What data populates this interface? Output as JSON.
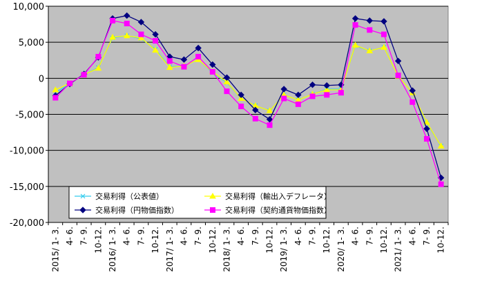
{
  "chart_data": {
    "type": "line",
    "title": "",
    "xlabel": "",
    "ylabel": "",
    "ylim": [
      -20000,
      10000
    ],
    "yticks": [
      10000,
      5000,
      0,
      -5000,
      -10000,
      -15000,
      -20000
    ],
    "ytick_labels": [
      "10,000",
      "5,000",
      "0",
      "-5,000",
      "-10,000",
      "-15,000",
      "-20,000"
    ],
    "grid": true,
    "legend_position": "lower-left inside plot",
    "categories": [
      "2015/ 1- 3.",
      "4- 6.",
      "7- 9.",
      "10-12.",
      "2016/ 1- 3.",
      "4- 6.",
      "7- 9.",
      "10-12.",
      "2017/ 1- 3.",
      "4- 6.",
      "7- 9.",
      "10-12.",
      "2018/ 1- 3.",
      "4- 6.",
      "7- 9.",
      "10-12.",
      "2019/ 1- 3.",
      "4- 6.",
      "7- 9.",
      "10-12.",
      "2020/ 1- 3.",
      "4- 6.",
      "7- 9.",
      "10-12.",
      "2021/ 1- 3.",
      "4- 6.",
      "7- 9.",
      "10-12."
    ],
    "series": [
      {
        "name": "交易利得（公表値）",
        "color": "#33ccee",
        "marker": "x",
        "values": [
          -2000,
          -700,
          500,
          1500,
          5600,
          5900,
          5500,
          4000,
          1600,
          1700,
          2600,
          800,
          -600,
          -2800,
          -3800,
          -4500,
          -2300,
          -3000,
          -2200,
          -1500,
          -1500,
          4500,
          3800,
          4300,
          300,
          -2000,
          -6200,
          -9400
        ]
      },
      {
        "name": "交易利得（輸出入デフレータ）",
        "color": "#ffff00",
        "marker": "triangle",
        "values": [
          -1600,
          -700,
          500,
          1400,
          5700,
          5900,
          5600,
          3900,
          1500,
          1700,
          2600,
          900,
          -500,
          -2800,
          -3800,
          -4500,
          -2300,
          -3000,
          -2200,
          -1600,
          -1600,
          4600,
          3800,
          4300,
          300,
          -2000,
          -6100,
          -9400
        ]
      },
      {
        "name": "交易利得（円物価指数）",
        "color": "#000080",
        "marker": "diamond",
        "values": [
          -2400,
          -800,
          600,
          2900,
          8300,
          8700,
          7800,
          6100,
          3000,
          2600,
          4200,
          1900,
          100,
          -2300,
          -4400,
          -5700,
          -1500,
          -2300,
          -900,
          -1000,
          -900,
          8300,
          8000,
          7900,
          2400,
          -1700,
          -7000,
          -13800
        ]
      },
      {
        "name": "交易利得（契約通貨物価指数）",
        "color": "#ff00ff",
        "marker": "square",
        "values": [
          -2700,
          -700,
          500,
          3000,
          8000,
          7600,
          6100,
          5200,
          2400,
          1600,
          3000,
          900,
          -1800,
          -3900,
          -5600,
          -6500,
          -2800,
          -3600,
          -2500,
          -2300,
          -2000,
          7400,
          6700,
          6100,
          400,
          -3300,
          -8400,
          -14700
        ]
      }
    ],
    "legend_layout": [
      [
        "交易利得（公表値）",
        "交易利得（輸出入デフレータ）"
      ],
      [
        "交易利得（円物価指数）",
        "交易利得（契約通貨物価指数）"
      ]
    ]
  },
  "colors": {
    "plot_background": "#c0c0c0",
    "gridline": "#000000",
    "axis": "#000000",
    "page_background": "#ffffff"
  }
}
